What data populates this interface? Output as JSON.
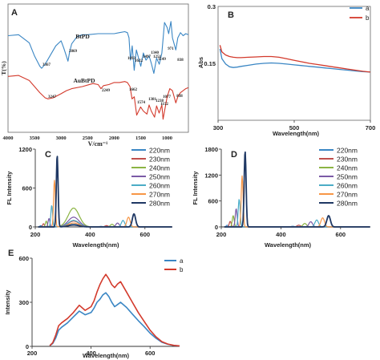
{
  "chart_data": [
    {
      "panel": "A",
      "type": "line",
      "xlabel": "V/cm⁻¹",
      "ylabel": "T(%)",
      "xlim": [
        4000,
        500
      ],
      "xticks": [
        "4000",
        "3500",
        "3000",
        "2500",
        "2000",
        "1500",
        "1000"
      ],
      "colors": [
        "#3a86c4",
        "#d33a2c"
      ],
      "series": [
        {
          "name": "BtPD",
          "peaks": [
            "3367",
            "2869",
            "1693",
            "1622",
            "1497",
            "1340",
            "1251",
            "1149",
            "971",
            "838"
          ],
          "x": [
            4000,
            3800,
            3600,
            3500,
            3400,
            3367,
            3300,
            3200,
            3100,
            3000,
            2950,
            2900,
            2869,
            2840,
            2800,
            2700,
            2600,
            2500,
            2300,
            2100,
            2000,
            1900,
            1800,
            1750,
            1720,
            1693,
            1660,
            1622,
            1580,
            1497,
            1450,
            1400,
            1340,
            1300,
            1251,
            1200,
            1149,
            1100,
            1050,
            1000,
            971,
            930,
            900,
            838,
            800,
            750,
            700,
            650,
            600
          ],
          "y": [
            72,
            73,
            65,
            52,
            42,
            40,
            44,
            53,
            62,
            67,
            60,
            52,
            47,
            56,
            64,
            71,
            73,
            73,
            74,
            74,
            74,
            75,
            76,
            75,
            70,
            48,
            62,
            38,
            58,
            42,
            55,
            48,
            52,
            45,
            35,
            50,
            44,
            55,
            85,
            80,
            74,
            86,
            70,
            58,
            70,
            75,
            72,
            74,
            73
          ]
        },
        {
          "name": "AuBtPD",
          "peaks": [
            "3247",
            "2249",
            "1662",
            "1574",
            "1381",
            "1238",
            "1077",
            "1152",
            "838"
          ],
          "x": [
            4000,
            3800,
            3600,
            3500,
            3400,
            3300,
            3247,
            3150,
            3000,
            2900,
            2800,
            2600,
            2400,
            2300,
            2249,
            2200,
            2100,
            2000,
            1900,
            1800,
            1750,
            1700,
            1662,
            1620,
            1574,
            1500,
            1450,
            1381,
            1340,
            1300,
            1238,
            1200,
            1152,
            1100,
            1077,
            1000,
            950,
            900,
            838,
            800,
            750,
            700,
            650,
            600
          ],
          "y": [
            32,
            33,
            28,
            22,
            16,
            11,
            10,
            11,
            15,
            18,
            20,
            22,
            25,
            24,
            20,
            23,
            24,
            26,
            26,
            27,
            26,
            22,
            10,
            12,
            -6,
            2,
            -2,
            -5,
            4,
            -2,
            -8,
            3,
            -4,
            4,
            -10,
            12,
            20,
            18,
            6,
            12,
            16,
            18,
            20,
            21
          ]
        }
      ]
    },
    {
      "panel": "B",
      "type": "line",
      "xlabel": "Wavelength(nm)",
      "ylabel": "Abs",
      "xlim": [
        300,
        700
      ],
      "ylim": [
        0,
        0.3
      ],
      "xticks": [
        "300",
        "500",
        "700"
      ],
      "yticks": [
        "0.15",
        "0.3"
      ],
      "legend": "top-right",
      "colors": [
        "#3a86c4",
        "#d33a2c"
      ],
      "series": [
        {
          "name": "a",
          "x": [
            305,
            310,
            320,
            330,
            340,
            350,
            360,
            380,
            400,
            420,
            440,
            460,
            480,
            500,
            520,
            540,
            560,
            580,
            600,
            620,
            640,
            660,
            680,
            700
          ],
          "y": [
            0.188,
            0.162,
            0.148,
            0.141,
            0.139,
            0.14,
            0.142,
            0.145,
            0.148,
            0.15,
            0.151,
            0.15,
            0.148,
            0.146,
            0.144,
            0.142,
            0.14,
            0.138,
            0.136,
            0.134,
            0.132,
            0.13,
            0.128,
            0.127
          ]
        },
        {
          "name": "b",
          "x": [
            305,
            310,
            320,
            330,
            340,
            350,
            360,
            380,
            400,
            420,
            440,
            460,
            480,
            500,
            520,
            540,
            560,
            580,
            600,
            620,
            640,
            660,
            680,
            700
          ],
          "y": [
            0.198,
            0.18,
            0.172,
            0.168,
            0.166,
            0.165,
            0.165,
            0.166,
            0.167,
            0.168,
            0.168,
            0.166,
            0.162,
            0.158,
            0.154,
            0.15,
            0.147,
            0.144,
            0.141,
            0.138,
            0.135,
            0.132,
            0.129,
            0.127
          ]
        }
      ]
    },
    {
      "panel": "C",
      "type": "line",
      "xlabel": "Wavelength(nm)",
      "ylabel": "FL Intensity",
      "xlim": [
        200,
        700
      ],
      "ylim": [
        0,
        1200
      ],
      "xticks": [
        "200",
        "400",
        "600"
      ],
      "yticks": [
        "0",
        "600",
        "1200"
      ],
      "legend": "right",
      "series": [
        {
          "name": "220nm",
          "color": "#3a86c4",
          "peaks": [
            [
              220,
              20
            ],
            [
              440,
              8
            ],
            [
              340,
              40
            ]
          ]
        },
        {
          "name": "230nm",
          "color": "#c0504d",
          "peaks": [
            [
              230,
              50
            ],
            [
              460,
              20
            ],
            [
              340,
              90
            ]
          ]
        },
        {
          "name": "240nm",
          "color": "#8bb443",
          "peaks": [
            [
              240,
              90
            ],
            [
              480,
              40
            ],
            [
              340,
              290
            ]
          ]
        },
        {
          "name": "250nm",
          "color": "#7b5aa6",
          "peaks": [
            [
              250,
              130
            ],
            [
              500,
              60
            ],
            [
              340,
              150
            ]
          ]
        },
        {
          "name": "260nm",
          "color": "#4bacc6",
          "peaks": [
            [
              260,
              330
            ],
            [
              520,
              100
            ],
            [
              340,
              100
            ]
          ]
        },
        {
          "name": "270nm",
          "color": "#f79646",
          "peaks": [
            [
              270,
              720
            ],
            [
              540,
              150
            ],
            [
              340,
              60
            ]
          ]
        },
        {
          "name": "280nm",
          "color": "#1f3864",
          "peaks": [
            [
              280,
              1100
            ],
            [
              560,
              200
            ],
            [
              340,
              30
            ]
          ]
        }
      ]
    },
    {
      "panel": "D",
      "type": "line",
      "xlabel": "Wavelength(nm)",
      "ylabel": "FL Intensity",
      "xlim": [
        200,
        700
      ],
      "ylim": [
        0,
        1800
      ],
      "xticks": [
        "200",
        "400",
        "600"
      ],
      "yticks": [
        "0",
        "600",
        "1200",
        "1800"
      ],
      "legend": "right",
      "series": [
        {
          "name": "220nm",
          "color": "#3a86c4",
          "peaks": [
            [
              220,
              40
            ],
            [
              440,
              15
            ]
          ]
        },
        {
          "name": "230nm",
          "color": "#c0504d",
          "peaks": [
            [
              230,
              130
            ],
            [
              460,
              40
            ]
          ]
        },
        {
          "name": "240nm",
          "color": "#8bb443",
          "peaks": [
            [
              240,
              260
            ],
            [
              480,
              80
            ]
          ]
        },
        {
          "name": "250nm",
          "color": "#7b5aa6",
          "peaks": [
            [
              250,
              420
            ],
            [
              500,
              120
            ]
          ]
        },
        {
          "name": "260nm",
          "color": "#4bacc6",
          "peaks": [
            [
              260,
              640
            ],
            [
              520,
              160
            ]
          ]
        },
        {
          "name": "270nm",
          "color": "#f79646",
          "peaks": [
            [
              270,
              1180
            ],
            [
              540,
              210
            ]
          ]
        },
        {
          "name": "280nm",
          "color": "#1f3864",
          "peaks": [
            [
              280,
              1750
            ],
            [
              560,
              260
            ]
          ]
        }
      ]
    },
    {
      "panel": "E",
      "type": "line",
      "xlabel": "Wavelength(nm)",
      "ylabel": "Intensity",
      "xlim": [
        200,
        700
      ],
      "ylim": [
        0,
        600
      ],
      "xticks": [
        "200",
        "400",
        "600"
      ],
      "yticks": [
        "0",
        "300",
        "600"
      ],
      "legend": "top-right",
      "colors": [
        "#3a86c4",
        "#d33a2c"
      ],
      "series": [
        {
          "name": "a",
          "x": [
            260,
            270,
            280,
            290,
            300,
            320,
            340,
            360,
            380,
            400,
            410,
            420,
            430,
            440,
            450,
            460,
            470,
            480,
            490,
            500,
            520,
            540,
            560,
            580,
            600,
            620,
            640,
            660,
            680,
            700
          ],
          "y": [
            5,
            20,
            55,
            110,
            130,
            160,
            200,
            240,
            215,
            230,
            260,
            300,
            320,
            350,
            365,
            340,
            300,
            270,
            285,
            300,
            265,
            220,
            175,
            135,
            90,
            55,
            28,
            14,
            6,
            3
          ]
        },
        {
          "name": "b",
          "x": [
            260,
            270,
            280,
            290,
            300,
            320,
            340,
            360,
            380,
            400,
            410,
            420,
            430,
            440,
            450,
            460,
            470,
            480,
            490,
            500,
            520,
            540,
            560,
            580,
            600,
            620,
            640,
            660,
            680,
            700
          ],
          "y": [
            5,
            25,
            75,
            140,
            160,
            190,
            230,
            280,
            245,
            270,
            310,
            370,
            420,
            460,
            490,
            460,
            420,
            400,
            425,
            440,
            370,
            300,
            230,
            170,
            110,
            65,
            32,
            16,
            7,
            3
          ]
        }
      ]
    }
  ]
}
